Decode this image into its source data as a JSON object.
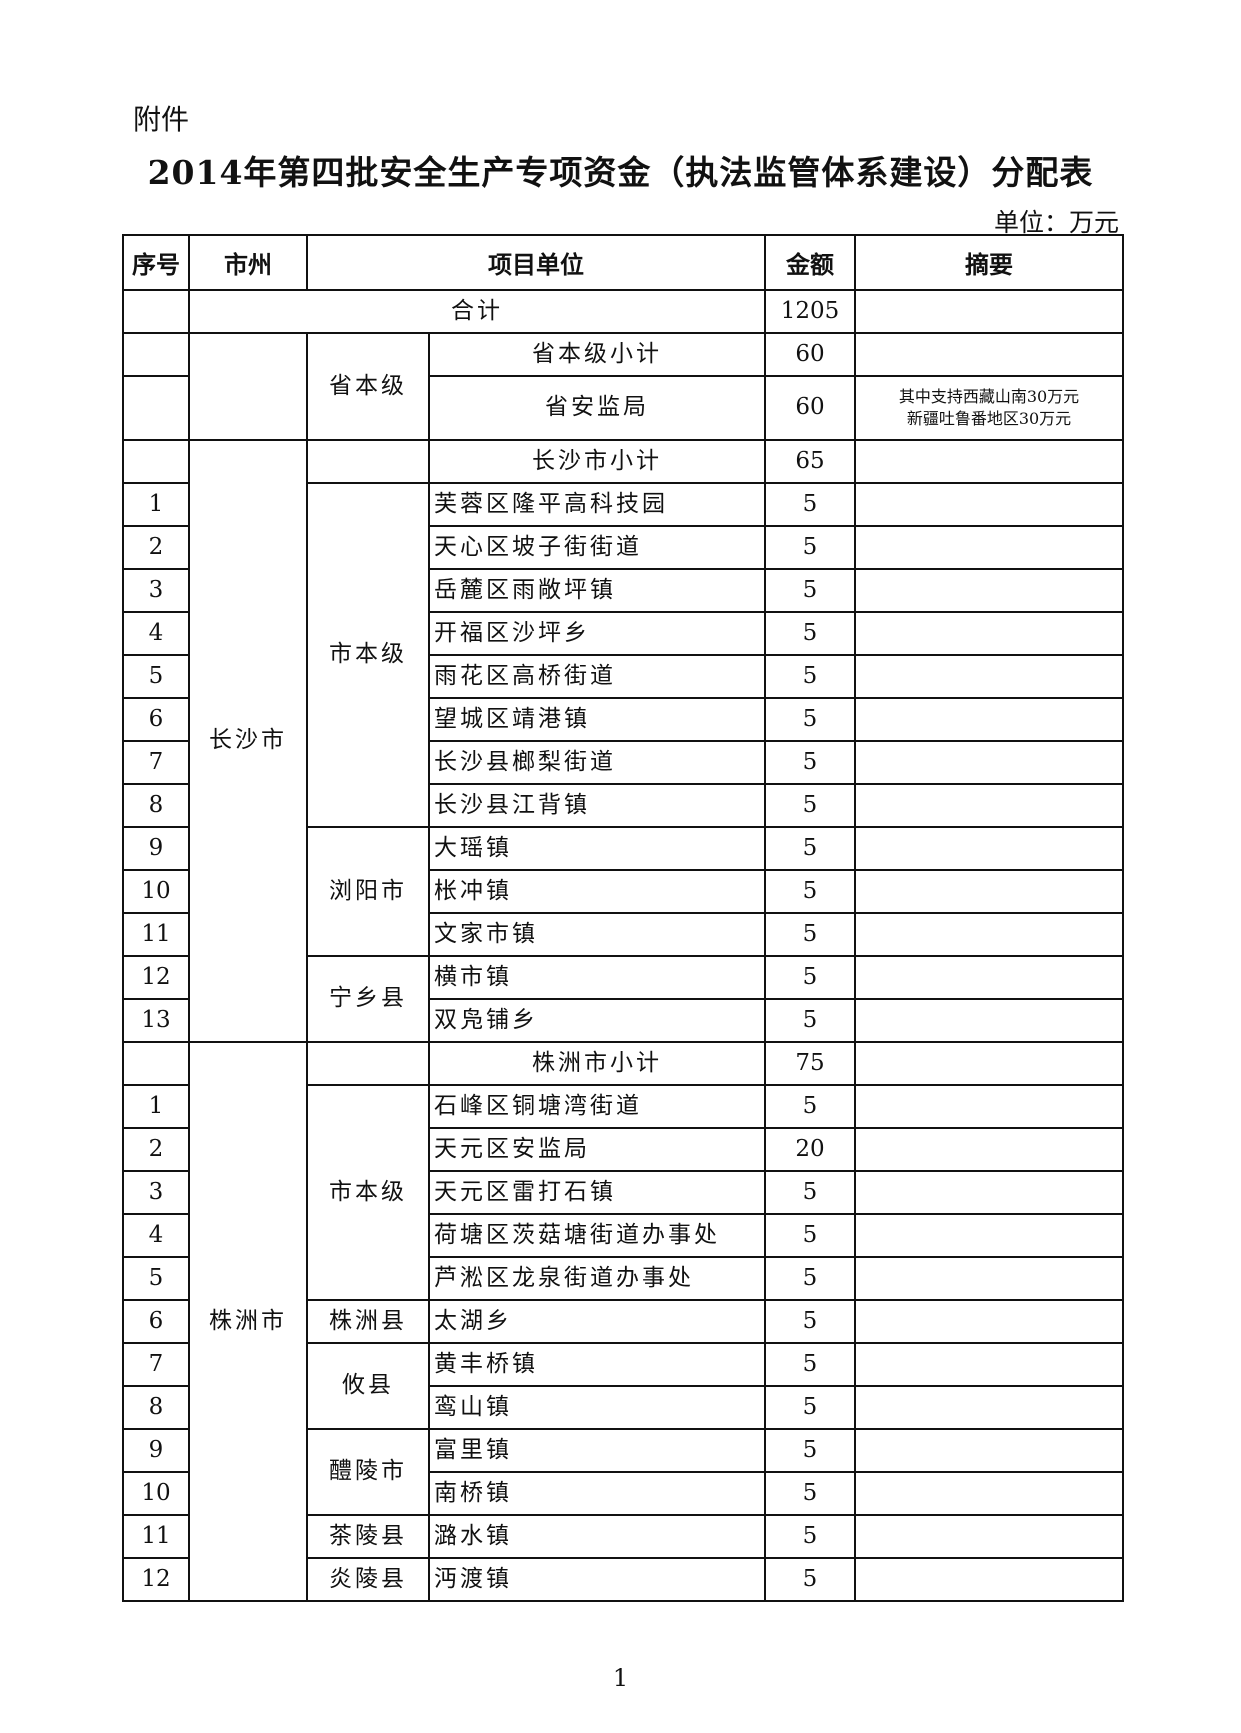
{
  "attachment_label": "附件",
  "title": "2014年第四批安全生产专项资金（执法监管体系建设）分配表",
  "unit_label": "单位：万元",
  "table": {
    "headers": [
      "序号",
      "市州",
      "项目单位",
      "金额",
      "摘要"
    ],
    "total": {
      "label": "合计",
      "amount": "1205"
    },
    "provincial": {
      "county": "省本级",
      "subtotal_label": "省本级小计",
      "subtotal_amount": "60",
      "items": [
        {
          "unit": "省安监局",
          "amount": "60",
          "note_lines": [
            "其中支持西藏山南30万元",
            "新疆吐鲁番地区30万元"
          ]
        }
      ]
    },
    "cities": [
      {
        "city": "长沙市",
        "subtotal_label": "长沙市小计",
        "subtotal_amount": "65",
        "blocks": [
          {
            "county": "市本级",
            "items": [
              {
                "seq": "1",
                "unit": "芙蓉区隆平高科技园",
                "amount": "5"
              },
              {
                "seq": "2",
                "unit": "天心区坡子街街道",
                "amount": "5"
              },
              {
                "seq": "3",
                "unit": "岳麓区雨敞坪镇",
                "amount": "5"
              },
              {
                "seq": "4",
                "unit": "开福区沙坪乡",
                "amount": "5"
              },
              {
                "seq": "5",
                "unit": "雨花区高桥街道",
                "amount": "5"
              },
              {
                "seq": "6",
                "unit": "望城区靖港镇",
                "amount": "5"
              },
              {
                "seq": "7",
                "unit": "长沙县榔梨街道",
                "amount": "5"
              },
              {
                "seq": "8",
                "unit": "长沙县江背镇",
                "amount": "5"
              }
            ]
          },
          {
            "county": "浏阳市",
            "items": [
              {
                "seq": "9",
                "unit": "大瑶镇",
                "amount": "5"
              },
              {
                "seq": "10",
                "unit": "枨冲镇",
                "amount": "5"
              },
              {
                "seq": "11",
                "unit": "文家市镇",
                "amount": "5"
              }
            ]
          },
          {
            "county": "宁乡县",
            "items": [
              {
                "seq": "12",
                "unit": "横市镇",
                "amount": "5"
              },
              {
                "seq": "13",
                "unit": "双凫铺乡",
                "amount": "5"
              }
            ]
          }
        ]
      },
      {
        "city": "株洲市",
        "subtotal_label": "株洲市小计",
        "subtotal_amount": "75",
        "blocks": [
          {
            "county": "市本级",
            "items": [
              {
                "seq": "1",
                "unit": "石峰区铜塘湾街道",
                "amount": "5"
              },
              {
                "seq": "2",
                "unit": "天元区安监局",
                "amount": "20"
              },
              {
                "seq": "3",
                "unit": "天元区雷打石镇",
                "amount": "5"
              },
              {
                "seq": "4",
                "unit": "荷塘区茨菇塘街道办事处",
                "amount": "5"
              },
              {
                "seq": "5",
                "unit": "芦淞区龙泉街道办事处",
                "amount": "5"
              }
            ]
          },
          {
            "county": "株洲县",
            "items": [
              {
                "seq": "6",
                "unit": "太湖乡",
                "amount": "5"
              }
            ]
          },
          {
            "county": "攸县",
            "items": [
              {
                "seq": "7",
                "unit": "黄丰桥镇",
                "amount": "5"
              },
              {
                "seq": "8",
                "unit": "鸾山镇",
                "amount": "5"
              }
            ]
          },
          {
            "county": "醴陵市",
            "items": [
              {
                "seq": "9",
                "unit": "富里镇",
                "amount": "5"
              },
              {
                "seq": "10",
                "unit": "南桥镇",
                "amount": "5"
              }
            ]
          },
          {
            "county": "茶陵县",
            "items": [
              {
                "seq": "11",
                "unit": "潞水镇",
                "amount": "5"
              }
            ]
          },
          {
            "county": "炎陵县",
            "items": [
              {
                "seq": "12",
                "unit": "沔渡镇",
                "amount": "5"
              }
            ]
          }
        ]
      }
    ]
  },
  "page_number": "1"
}
